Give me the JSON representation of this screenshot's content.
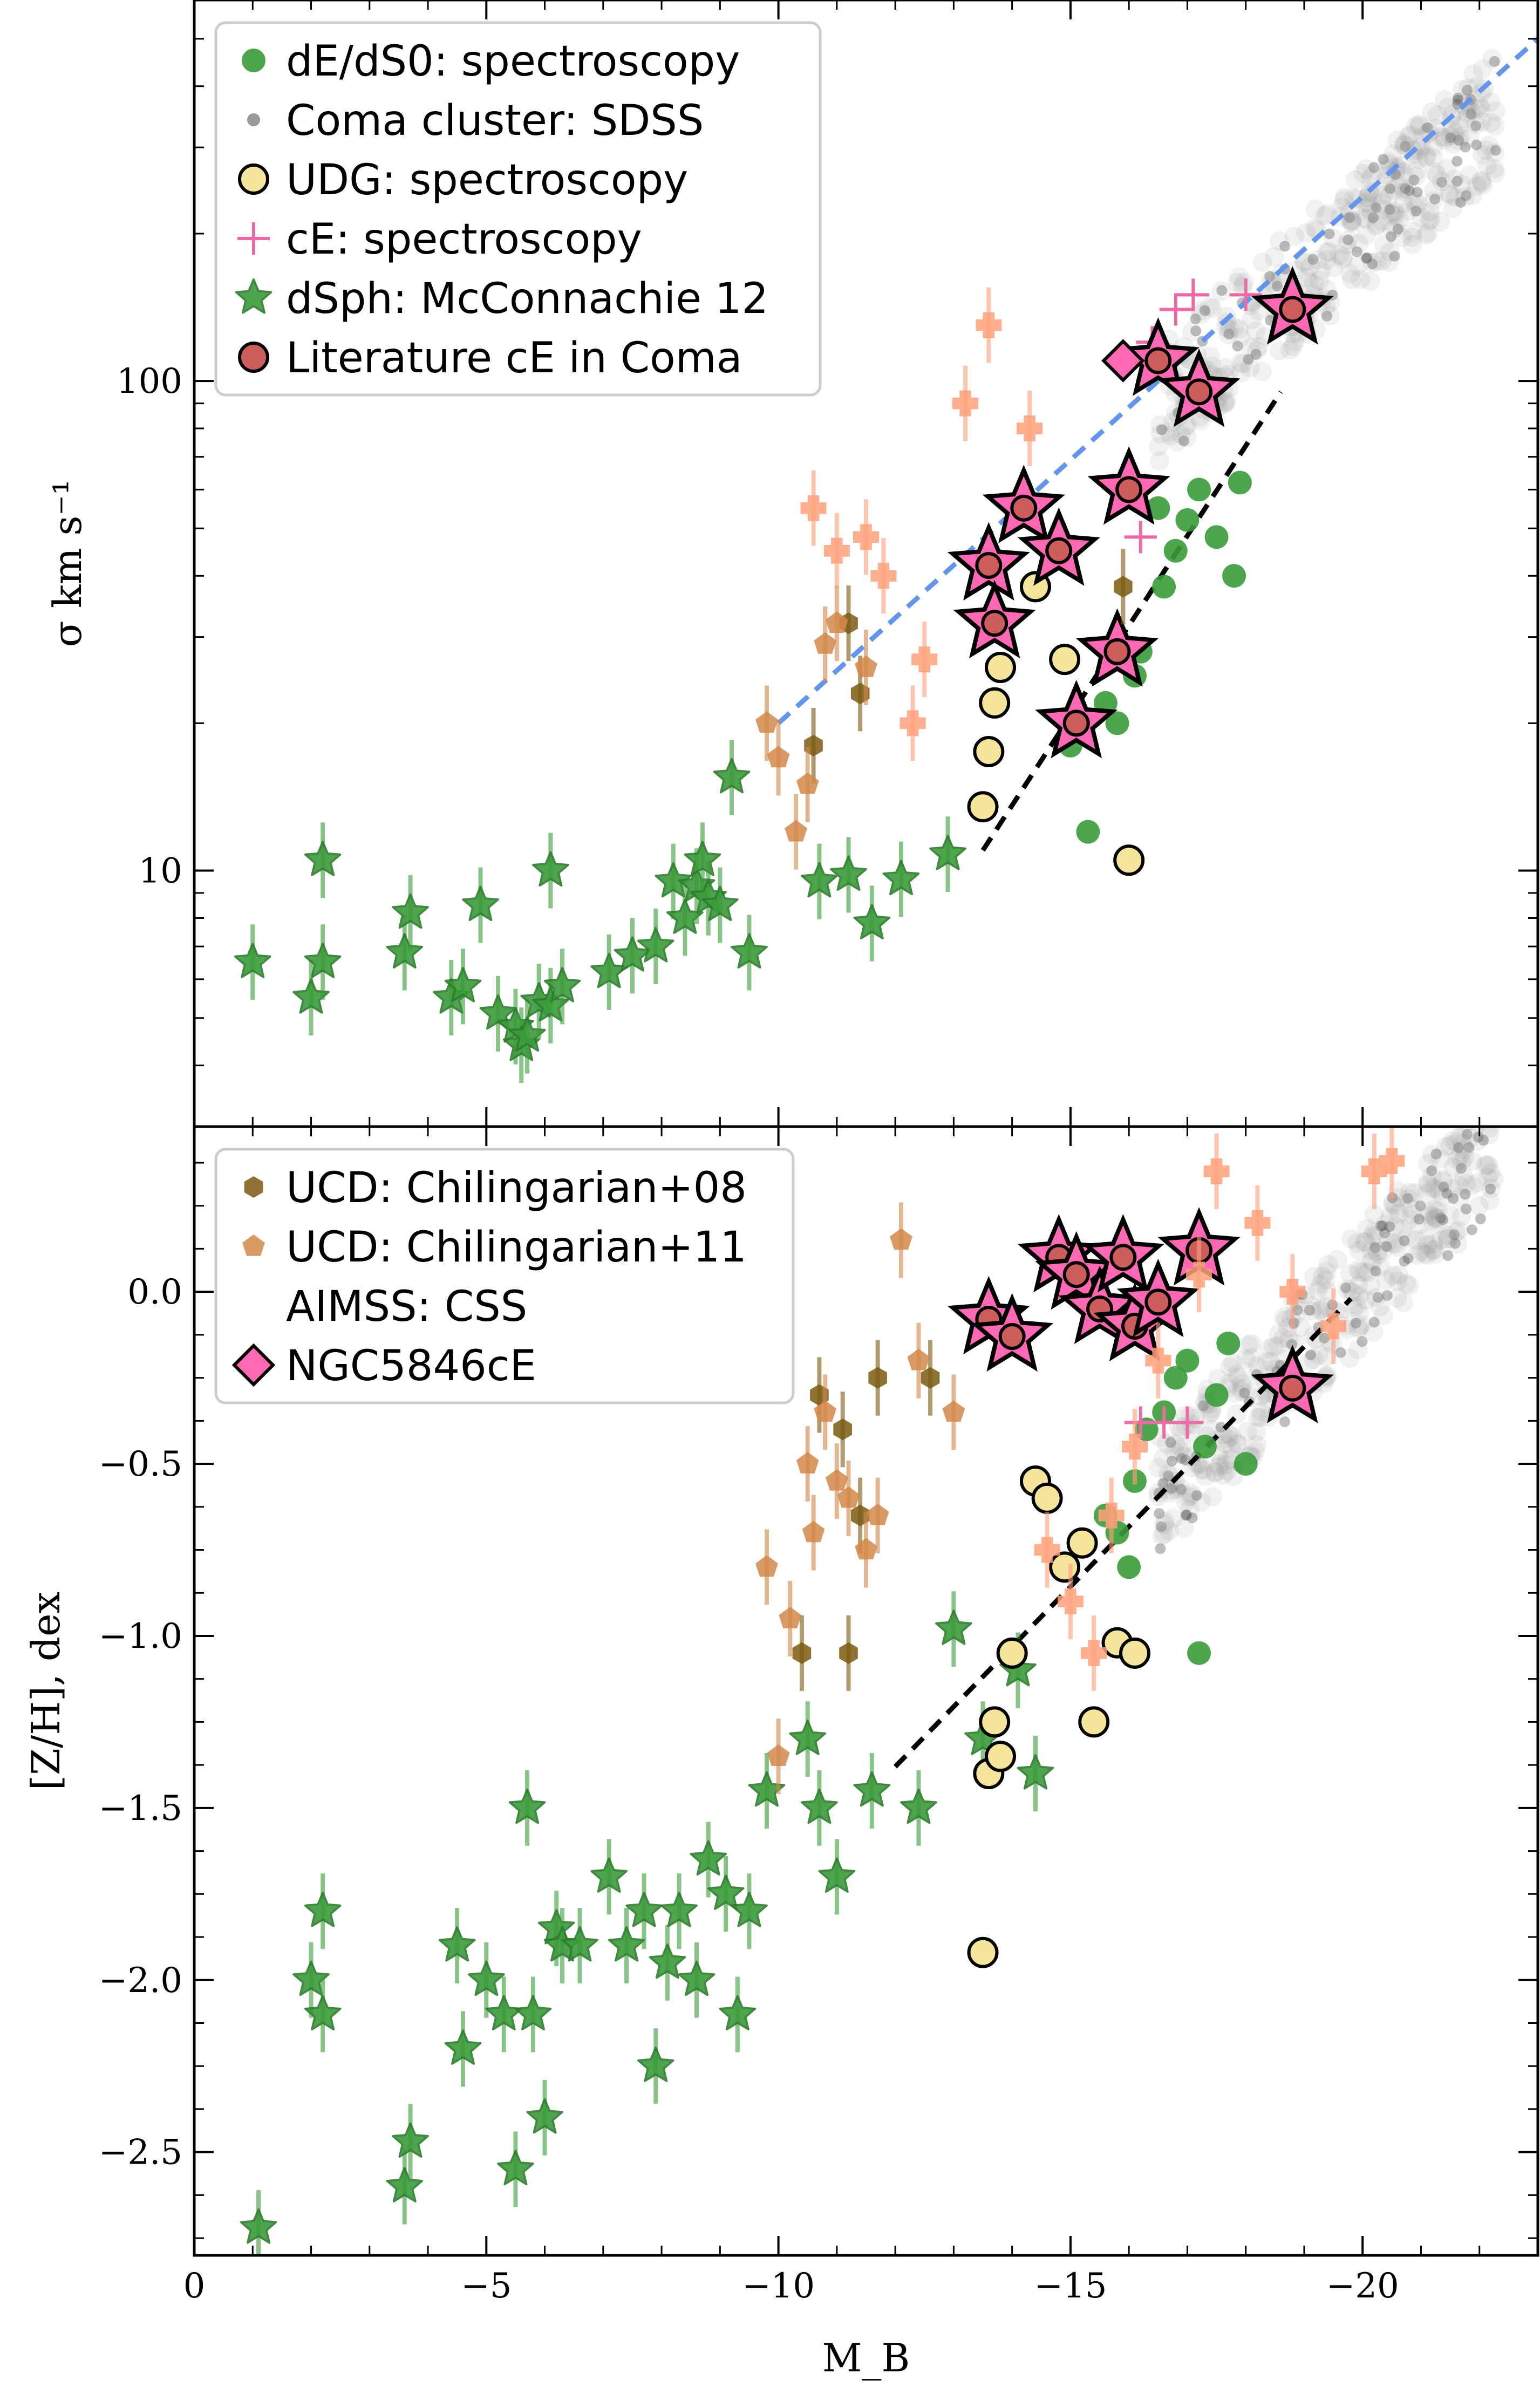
{
  "chart_data": [
    {
      "type": "scatter",
      "title": "",
      "xlabel": "M_B",
      "ylabel": "σ km s⁻¹",
      "xlim": [
        0,
        -23
      ],
      "ylim": [
        3,
        600
      ],
      "yscale": "log",
      "xticks": [
        0,
        -5,
        -10,
        -15,
        -20
      ],
      "xtick_labels": [
        "",
        "",
        "",
        "",
        ""
      ],
      "yticks": [
        10,
        100
      ],
      "ytick_labels": [
        "10",
        "100"
      ],
      "legend": {
        "placement": "top-left",
        "entries": [
          {
            "label": "dE/dS0: spectroscopy",
            "marker": "circle",
            "color": "#3a9c3a"
          },
          {
            "label": "Coma cluster: SDSS",
            "marker": "dot",
            "color": "#9a9a9a"
          },
          {
            "label": "UDG: spectroscopy",
            "marker": "circle-outline",
            "color": "#f5e49c"
          },
          {
            "label": "cE: spectroscopy",
            "marker": "plus",
            "color": "#ee6aa7"
          },
          {
            "label": "dSph: McConnachie 12",
            "marker": "star",
            "color": "#3a9c3a"
          },
          {
            "label": "Literature cE in Coma",
            "marker": "circle-outline",
            "color": "#cd5c5c"
          }
        ]
      },
      "fit_lines": [
        {
          "style": "dashed",
          "color": "#6495ed",
          "x": [
            -10,
            -23
          ],
          "y": [
            20,
            500
          ]
        },
        {
          "style": "dashed",
          "color": "#000000",
          "x": [
            -13.5,
            -18.6
          ],
          "y": [
            11,
            95
          ]
        }
      ],
      "series": [
        {
          "name": "dSph: McConnachie 12",
          "marker": "star",
          "x": [
            -1.0,
            -2.0,
            -2.2,
            -2.2,
            -3.6,
            -3.7,
            -4.4,
            -4.6,
            -4.9,
            -5.2,
            -5.5,
            -5.6,
            -5.7,
            -5.9,
            -6.1,
            -6.1,
            -6.3,
            -7.1,
            -7.5,
            -7.9,
            -8.2,
            -8.4,
            -8.6,
            -8.7,
            -8.8,
            -9.0,
            -9.2,
            -9.5,
            -10.7,
            -11.2,
            -11.6,
            -12.1,
            -12.9
          ],
          "y": [
            6.5,
            5.5,
            10.5,
            6.5,
            6.8,
            8.2,
            5.5,
            5.8,
            8.5,
            5.1,
            4.8,
            4.4,
            4.6,
            5.4,
            5.3,
            10,
            5.8,
            6.2,
            6.7,
            7.0,
            9.5,
            8.0,
            9.3,
            10.5,
            8.8,
            8.5,
            15.5,
            6.8,
            9.5,
            9.8,
            7.8,
            9.6,
            10.8
          ]
        },
        {
          "name": "dE/dS0: spectroscopy",
          "marker": "circle",
          "x": [
            -15.6,
            -16.2,
            -16.6,
            -16.8,
            -17.0,
            -17.2,
            -17.5,
            -17.8,
            -16.1,
            -15.8,
            -16.5,
            -17.9,
            -15.3,
            -15.0
          ],
          "y": [
            22,
            28,
            38,
            45,
            52,
            60,
            48,
            40,
            25,
            20,
            55,
            62,
            12,
            18
          ]
        },
        {
          "name": "UDG: spectroscopy",
          "marker": "circle-outline",
          "x": [
            -13.5,
            -13.6,
            -13.7,
            -13.8,
            -14.4,
            -14.9,
            -16.0
          ],
          "y": [
            13.5,
            17.5,
            22,
            26,
            38,
            27,
            10.5
          ]
        },
        {
          "name": "cE: spectroscopy",
          "marker": "plus",
          "x": [
            -16.8,
            -17.1,
            -18.0,
            -16.4,
            -16.2
          ],
          "y": [
            140,
            150,
            150,
            120,
            48
          ]
        },
        {
          "name": "Literature cE in Coma",
          "marker": "circle-outline",
          "x": [
            -13.6,
            -13.7,
            -14.2,
            -14.8,
            -15.1,
            -15.8,
            -16.0,
            -16.5,
            -17.2,
            -18.8
          ],
          "y": [
            42,
            32,
            55,
            45,
            20,
            28,
            60,
            110,
            95,
            140
          ]
        },
        {
          "name": "NGC5846cE",
          "marker": "diamond",
          "x": [
            -15.9
          ],
          "y": [
            110
          ]
        },
        {
          "name": "UCD: Chilingarian+08",
          "marker": "hexagon",
          "x": [
            -10.6,
            -11.2,
            -11.4,
            -15.9
          ],
          "y": [
            18,
            32,
            23,
            38
          ]
        },
        {
          "name": "UCD: Chilingarian+11",
          "marker": "pentagon",
          "x": [
            -9.8,
            -10.0,
            -10.3,
            -10.5,
            -10.8,
            -11.0,
            -11.5
          ],
          "y": [
            20,
            17,
            12,
            15,
            29,
            32,
            26
          ]
        },
        {
          "name": "AIMSS: CSS",
          "marker": "plus",
          "x": [
            -10.6,
            -11.0,
            -11.5,
            -11.8,
            -12.3,
            -12.5,
            -13.2,
            -13.6,
            -14.3
          ],
          "y": [
            55,
            45,
            48,
            40,
            20,
            27,
            90,
            130,
            80
          ]
        }
      ]
    },
    {
      "type": "scatter",
      "title": "",
      "xlabel": "M_B",
      "ylabel": "[Z/H], dex",
      "xlim": [
        0,
        -23
      ],
      "ylim": [
        -2.8,
        0.48
      ],
      "xticks": [
        0,
        -5,
        -10,
        -15,
        -20
      ],
      "xtick_labels": [
        "0",
        "−5",
        "−10",
        "−15",
        "−20"
      ],
      "yticks": [
        0.0,
        -0.5,
        -1.0,
        -1.5,
        -2.0,
        -2.5
      ],
      "ytick_labels": [
        "0.0",
        "−0.5",
        "−1.0",
        "−1.5",
        "−2.0",
        "−2.5"
      ],
      "legend": {
        "placement": "top-left",
        "entries": [
          {
            "label": "UCD: Chilingarian+08",
            "marker": "hexagon",
            "color": "#7a5a10"
          },
          {
            "label": "UCD: Chilingarian+11",
            "marker": "pentagon",
            "color": "#d2884a"
          },
          {
            "label": "AIMSS: CSS",
            "marker": "plus",
            "color": "#ffa07a"
          },
          {
            "label": "NGC5846cE",
            "marker": "diamond",
            "color": "#ff69b4"
          }
        ]
      },
      "fit_lines": [
        {
          "style": "dashed",
          "color": "#000000",
          "x": [
            -12.0,
            -19.8
          ],
          "y": [
            -1.38,
            -0.02
          ]
        }
      ],
      "series": [
        {
          "name": "dSph: McConnachie 12",
          "marker": "star",
          "x": [
            -1.1,
            -2.0,
            -2.2,
            -2.2,
            -3.6,
            -3.7,
            -4.5,
            -4.6,
            -5.0,
            -5.3,
            -5.5,
            -5.7,
            -5.8,
            -6.0,
            -6.2,
            -6.3,
            -6.6,
            -7.1,
            -7.4,
            -7.7,
            -7.9,
            -8.1,
            -8.3,
            -8.6,
            -8.8,
            -9.1,
            -9.3,
            -9.5,
            -9.8,
            -10.5,
            -10.7,
            -11.0,
            -11.6,
            -12.4,
            -13.0,
            -13.5,
            -14.1,
            -14.4
          ],
          "y": [
            -2.72,
            -2.0,
            -2.1,
            -1.8,
            -2.6,
            -2.47,
            -1.9,
            -2.2,
            -2.0,
            -2.1,
            -2.55,
            -1.5,
            -2.1,
            -2.4,
            -1.85,
            -1.9,
            -1.9,
            -1.7,
            -1.9,
            -1.8,
            -2.25,
            -1.95,
            -1.8,
            -2.0,
            -1.65,
            -1.75,
            -2.1,
            -1.8,
            -1.45,
            -1.3,
            -1.5,
            -1.7,
            -1.45,
            -1.5,
            -0.98,
            -1.3,
            -1.1,
            -1.4
          ]
        },
        {
          "name": "dE/dS0: spectroscopy",
          "marker": "circle",
          "x": [
            -15.8,
            -16.1,
            -16.3,
            -16.6,
            -16.8,
            -17.0,
            -17.3,
            -17.5,
            -17.7,
            -18.0,
            -16.0,
            -15.6,
            -17.2
          ],
          "y": [
            -0.7,
            -0.55,
            -0.4,
            -0.35,
            -0.25,
            -0.2,
            -0.45,
            -0.3,
            -0.15,
            -0.5,
            -0.8,
            -0.65,
            -1.05
          ]
        },
        {
          "name": "UDG: spectroscopy",
          "marker": "circle-outline",
          "x": [
            -13.5,
            -13.6,
            -13.7,
            -13.8,
            -14.0,
            -14.4,
            -14.6,
            -14.9,
            -15.2,
            -15.4,
            -15.8,
            -16.1
          ],
          "y": [
            -1.92,
            -1.4,
            -1.25,
            -1.35,
            -1.05,
            -0.55,
            -0.6,
            -0.8,
            -0.73,
            -1.25,
            -1.02,
            -1.05
          ]
        },
        {
          "name": "cE: spectroscopy",
          "marker": "plus",
          "x": [
            -16.2,
            -16.6,
            -17.0,
            -16.3
          ],
          "y": [
            -0.38,
            -0.38,
            -0.38,
            -0.05
          ]
        },
        {
          "name": "Literature cE in Coma",
          "marker": "circle-outline",
          "x": [
            -13.6,
            -14.0,
            -14.8,
            -15.1,
            -15.5,
            -15.9,
            -16.1,
            -16.5,
            -17.2,
            -18.8
          ],
          "y": [
            -0.08,
            -0.13,
            0.1,
            0.05,
            -0.05,
            0.1,
            -0.1,
            -0.03,
            0.12,
            -0.28
          ]
        },
        {
          "name": "UCD: Chilingarian+08",
          "marker": "hexagon",
          "x": [
            -10.4,
            -10.7,
            -11.1,
            -11.2,
            -11.4,
            -11.7,
            -12.6
          ],
          "y": [
            -1.05,
            -0.3,
            -0.4,
            -1.05,
            -0.65,
            -0.25,
            -0.25
          ]
        },
        {
          "name": "UCD: Chilingarian+11",
          "marker": "pentagon",
          "x": [
            -9.8,
            -10.0,
            -10.2,
            -10.5,
            -10.6,
            -10.8,
            -11.0,
            -11.2,
            -11.5,
            -11.7,
            -12.1,
            -12.4,
            -13.0
          ],
          "y": [
            -0.8,
            -1.35,
            -0.95,
            -0.5,
            -0.7,
            -0.35,
            -0.55,
            -0.6,
            -0.75,
            -0.65,
            0.15,
            -0.2,
            -0.35
          ]
        },
        {
          "name": "AIMSS: CSS",
          "marker": "plus",
          "x": [
            -14.6,
            -15.0,
            -15.4,
            -15.7,
            -16.1,
            -16.5,
            -17.2,
            -17.5,
            -18.2,
            -18.8,
            -19.5,
            -20.2,
            -20.5
          ],
          "y": [
            -0.75,
            -0.9,
            -1.05,
            -0.65,
            -0.45,
            -0.2,
            0.05,
            0.35,
            0.2,
            0.0,
            -0.1,
            0.35,
            0.38
          ]
        }
      ]
    }
  ]
}
